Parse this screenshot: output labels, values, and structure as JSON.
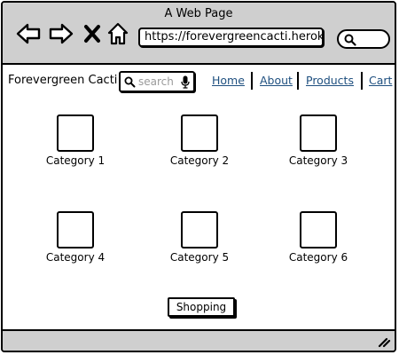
{
  "window": {
    "title": "A Web Page"
  },
  "browser": {
    "url": "https://forevergreencacti.heroku.",
    "buttons": [
      {
        "name": "back-arrow-icon"
      },
      {
        "name": "forward-arrow-icon"
      },
      {
        "name": "close-x-icon"
      },
      {
        "name": "home-icon"
      }
    ],
    "search_icon": "search-icon"
  },
  "site": {
    "brand": "Forevergreen Cacti",
    "search": {
      "placeholder": "search",
      "icon": "search-icon",
      "mic_icon": "microphone-icon"
    },
    "nav": [
      {
        "label": "Home"
      },
      {
        "label": "About"
      },
      {
        "label": "Products"
      },
      {
        "label": "Cart"
      }
    ],
    "link_color": "#1e4f7f"
  },
  "categories": [
    {
      "label": "Category 1"
    },
    {
      "label": "Category 2"
    },
    {
      "label": "Category 3"
    },
    {
      "label": "Category 4"
    },
    {
      "label": "Category 5"
    },
    {
      "label": "Category 6"
    }
  ],
  "shopping_button": {
    "label": "Shopping"
  },
  "colors": {
    "chrome": "#cfcfcf",
    "background": "#ffffff",
    "stroke": "#000000"
  }
}
